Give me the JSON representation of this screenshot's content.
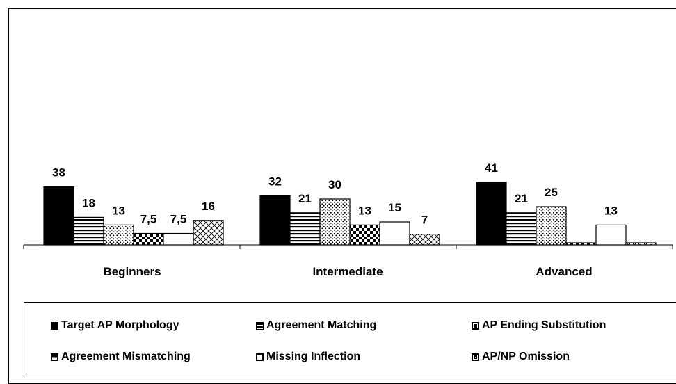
{
  "chart_data": {
    "type": "bar",
    "categories": [
      "Beginners",
      "Intermediate",
      "Advanced"
    ],
    "series": [
      {
        "name": "Target AP Morphology",
        "values": [
          38,
          32,
          41
        ],
        "labels": [
          "38",
          "32",
          "41"
        ],
        "pattern": "solid"
      },
      {
        "name": "Agreement Matching",
        "values": [
          18,
          21,
          21
        ],
        "labels": [
          "18",
          "21",
          "21"
        ],
        "pattern": "hstripes"
      },
      {
        "name": "AP Ending Substitution",
        "values": [
          13,
          30,
          25
        ],
        "labels": [
          "13",
          "30",
          "25"
        ],
        "pattern": "dots"
      },
      {
        "name": "Agreement Mismatching",
        "values": [
          7.5,
          13,
          0
        ],
        "labels": [
          "7,5",
          "13",
          ""
        ],
        "pattern": "checker"
      },
      {
        "name": "Missing Inflection",
        "values": [
          7.5,
          15,
          13
        ],
        "labels": [
          "7,5",
          "15",
          "13"
        ],
        "pattern": "white"
      },
      {
        "name": "AP/NP Omission",
        "values": [
          16,
          7,
          0
        ],
        "labels": [
          "16",
          "7",
          ""
        ],
        "pattern": "crosshatch"
      }
    ],
    "legend_position": "bottom",
    "grid": false,
    "ylim": [
      0,
      100
    ],
    "colors": {
      "ink": "#000000",
      "background": "#ffffff"
    }
  }
}
